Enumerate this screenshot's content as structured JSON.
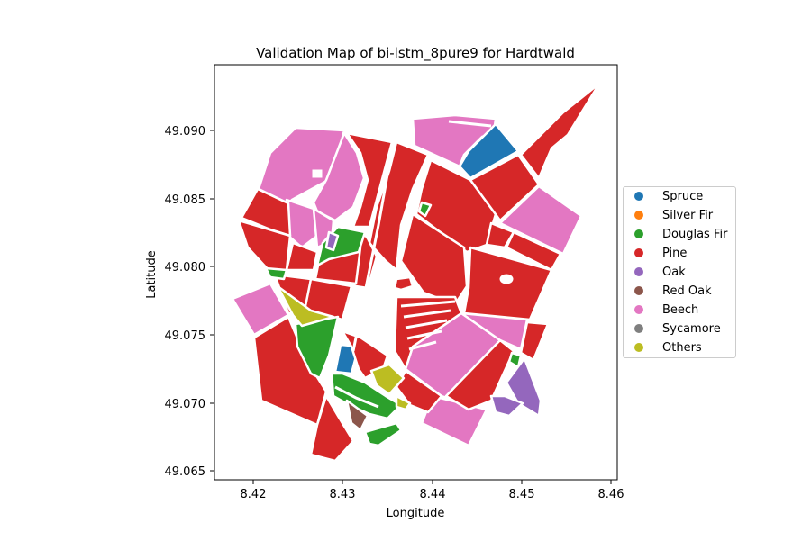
{
  "title": "Validation Map of bi-lstm_8pure9 for Hardtwald",
  "xlabel": "Longitude",
  "ylabel": "Latitude",
  "x_ticks": [
    "8.42",
    "8.43",
    "8.44",
    "8.45",
    "8.46"
  ],
  "y_ticks": [
    "49.065",
    "49.070",
    "49.075",
    "49.080",
    "49.085",
    "49.090"
  ],
  "legend": [
    {
      "label": "Spruce",
      "color": "#1f77b4"
    },
    {
      "label": "Silver Fir",
      "color": "#ff7f0e"
    },
    {
      "label": "Douglas Fir",
      "color": "#2ca02c"
    },
    {
      "label": "Pine",
      "color": "#d62728"
    },
    {
      "label": "Oak",
      "color": "#9467bd"
    },
    {
      "label": "Red Oak",
      "color": "#8c564b"
    },
    {
      "label": "Beech",
      "color": "#e377c2"
    },
    {
      "label": "Sycamore",
      "color": "#7f7f7f"
    },
    {
      "label": "Others",
      "color": "#bcbd22"
    }
  ]
}
